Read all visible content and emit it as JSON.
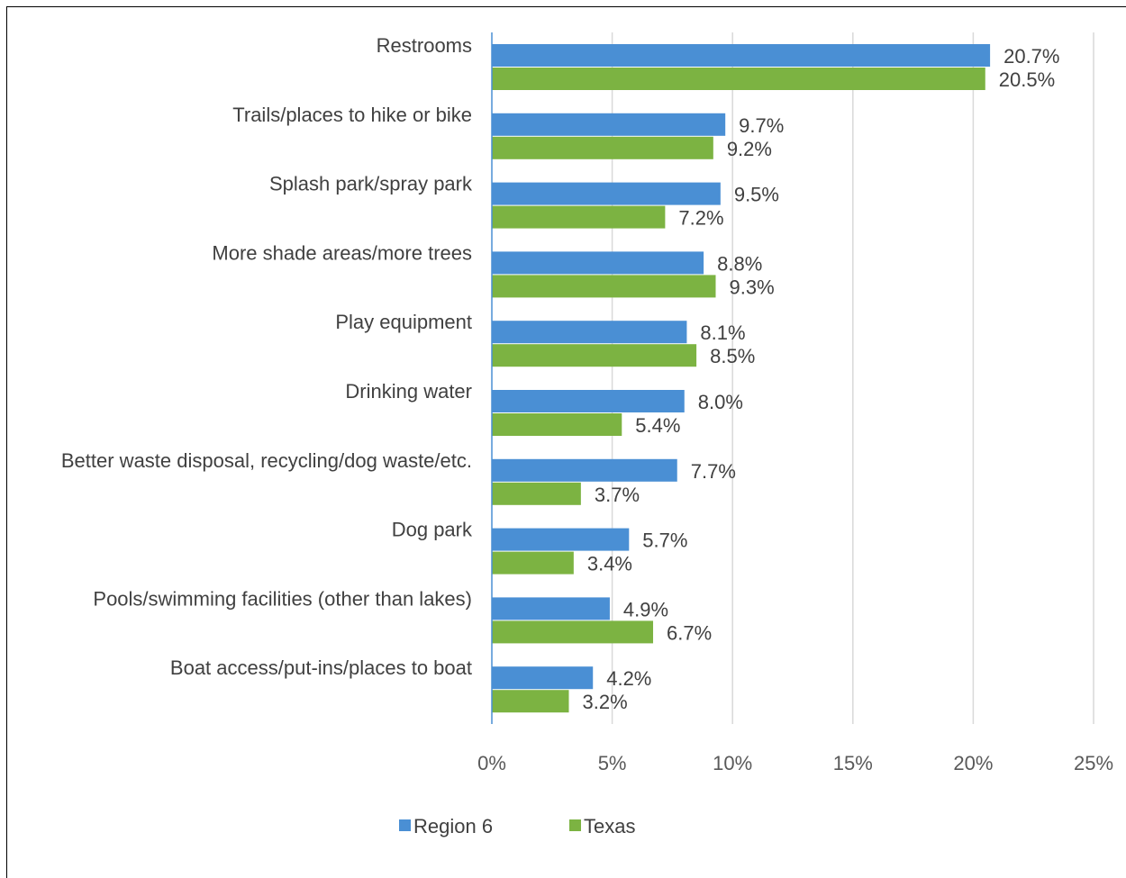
{
  "chart_data": {
    "type": "bar",
    "orientation": "horizontal",
    "categories": [
      "Restrooms",
      "Trails/places to hike or bike",
      "Splash park/spray park",
      "More shade areas/more trees",
      "Play equipment",
      "Drinking water",
      "Better waste disposal, recycling/dog waste/etc.",
      "Dog park",
      "Pools/swimming facilities (other than lakes)",
      "Boat access/put-ins/places to boat"
    ],
    "series": [
      {
        "name": "Region 6",
        "color": "#4a8fd4",
        "values": [
          20.7,
          9.7,
          9.5,
          8.8,
          8.1,
          8.0,
          7.7,
          5.7,
          4.9,
          4.2
        ],
        "labels": [
          "20.7%",
          "9.7%",
          "9.5%",
          "8.8%",
          "8.1%",
          "8.0%",
          "7.7%",
          "5.7%",
          "4.9%",
          "4.2%"
        ]
      },
      {
        "name": "Texas",
        "color": "#7cb342",
        "values": [
          20.5,
          9.2,
          7.2,
          9.3,
          8.5,
          5.4,
          3.7,
          3.4,
          6.7,
          3.2
        ],
        "labels": [
          "20.5%",
          "9.2%",
          "7.2%",
          "9.3%",
          "8.5%",
          "5.4%",
          "3.7%",
          "3.4%",
          "6.7%",
          "3.2%"
        ]
      }
    ],
    "xlim": [
      0,
      25
    ],
    "x_ticks": [
      0,
      5,
      10,
      15,
      20,
      25
    ],
    "x_tick_labels": [
      "0%",
      "5%",
      "10%",
      "15%",
      "20%",
      "25%"
    ],
    "grid": "vertical",
    "legend": "bottom-center",
    "title": "",
    "xlabel": "",
    "ylabel": ""
  }
}
